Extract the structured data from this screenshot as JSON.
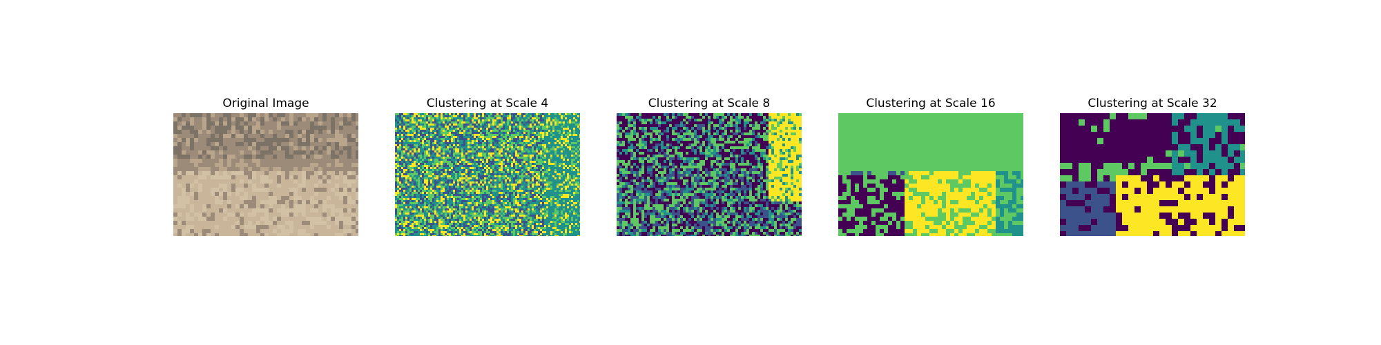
{
  "figure": {
    "panels": [
      {
        "title": "Original Image",
        "kind": "photo",
        "description_icon": "aerial-grass-photo"
      },
      {
        "title": "Clustering at Scale 4",
        "kind": "cluster",
        "scale": 4
      },
      {
        "title": "Clustering at Scale 8",
        "kind": "cluster",
        "scale": 8
      },
      {
        "title": "Clustering at Scale 16",
        "kind": "cluster",
        "scale": 16
      },
      {
        "title": "Clustering at Scale 32",
        "kind": "cluster",
        "scale": 32
      }
    ],
    "palette": [
      "#440154",
      "#3b528b",
      "#21918c",
      "#5ec962",
      "#fde725"
    ],
    "photo_colors": [
      "#b9a58c",
      "#9c8b78",
      "#c8b59a",
      "#7d7266",
      "#d2c1a5"
    ]
  }
}
